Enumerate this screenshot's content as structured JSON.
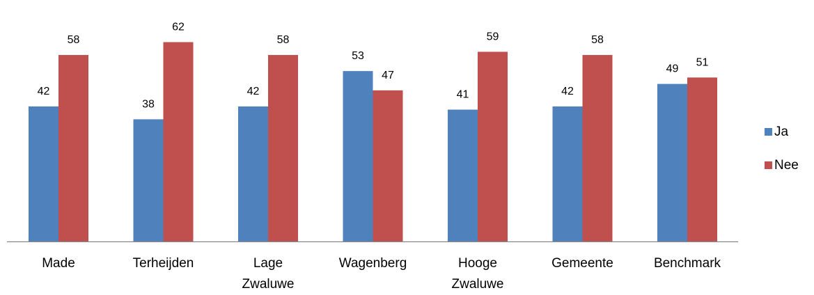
{
  "chart_data": {
    "type": "bar",
    "categories": [
      [
        "Made"
      ],
      [
        "Terheijden"
      ],
      [
        "Lage",
        "Zwaluwe"
      ],
      [
        "Wagenberg"
      ],
      [
        "Hooge",
        "Zwaluwe"
      ],
      [
        "Gemeente"
      ],
      [
        "Benchmark"
      ]
    ],
    "series": [
      {
        "name": "Ja",
        "color": "#4F81BD",
        "values": [
          42,
          38,
          42,
          53,
          41,
          42,
          49
        ]
      },
      {
        "name": "Nee",
        "color": "#C0504D",
        "values": [
          58,
          62,
          58,
          47,
          59,
          58,
          51
        ]
      }
    ],
    "ylim": [
      0,
      70
    ],
    "grid": false,
    "legend": "right",
    "title": "",
    "xlabel": "",
    "ylabel": ""
  }
}
